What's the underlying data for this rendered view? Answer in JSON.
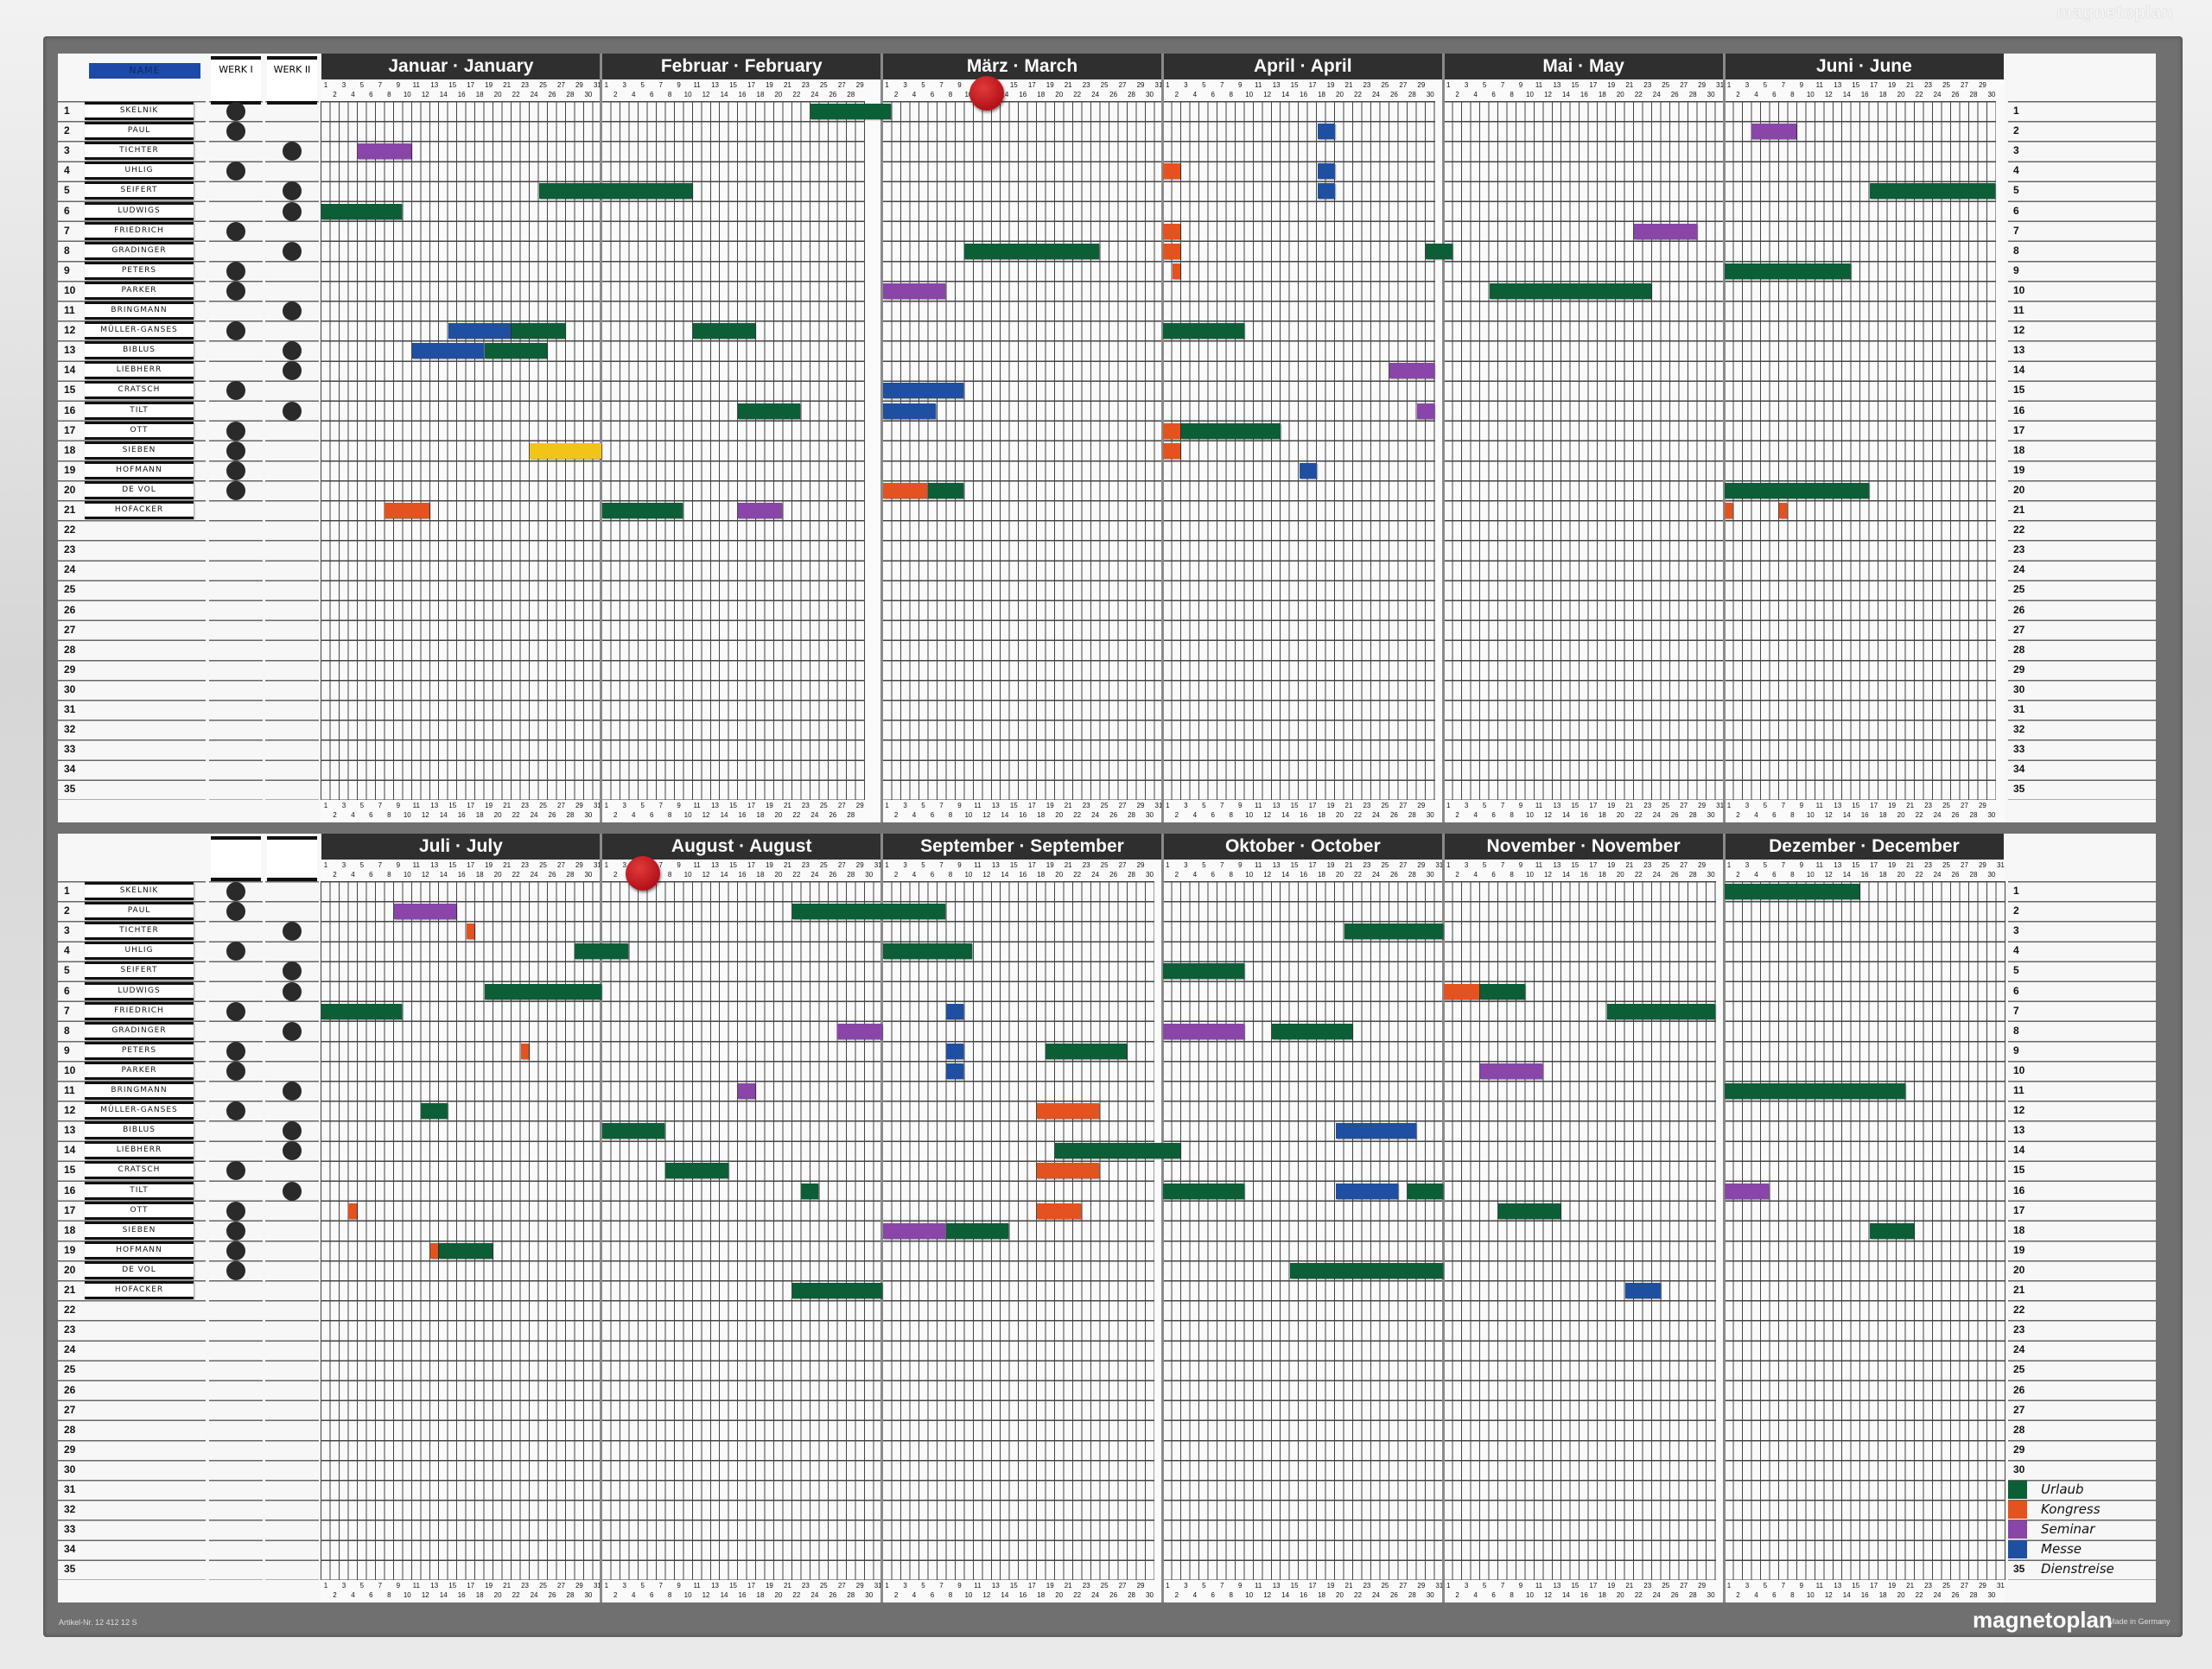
{
  "frame_brand": "magnetoplan",
  "brand": "magnetoplan",
  "made_in": "Made in Germany",
  "article_no": "Artikel-Nr. 12 412 12 S",
  "header": {
    "name_label": "NAME",
    "werk1": "WERK I",
    "werk2": "WERK II"
  },
  "row_count": 35,
  "names": [
    "Skelnik",
    "Paul",
    "Tichter",
    "Uhlig",
    "Seifert",
    "Ludwigs",
    "Friedrich",
    "Gradinger",
    "Peters",
    "Parker",
    "Bringmann",
    "Müller-Ganses",
    "Biblus",
    "Liebherr",
    "Cratsch",
    "Tilt",
    "Ott",
    "Sieben",
    "Hofmann",
    "De Vol",
    "Hofacker"
  ],
  "werk1_rows": [
    1,
    2,
    4,
    7,
    9,
    10,
    12,
    15,
    17,
    18,
    19,
    20
  ],
  "werk2_rows": [
    3,
    5,
    6,
    8,
    11,
    13,
    14,
    16
  ],
  "colors": {
    "urlaub": "#0c5e37",
    "kongress": "#e4521f",
    "seminar": "#8a45a8",
    "messe": "#1f4fa0",
    "yellow": "#f2c417",
    "marker": "#c8161d"
  },
  "legend": [
    {
      "key": "urlaub",
      "label": "Urlaub"
    },
    {
      "key": "kongress",
      "label": "Kongress"
    },
    {
      "key": "seminar",
      "label": "Seminar"
    },
    {
      "key": "messe",
      "label": "Messe"
    }
  ],
  "legend_extra": "Dienstreise",
  "halves": [
    {
      "months": [
        {
          "label": "Januar · January",
          "days": 31
        },
        {
          "label": "Februar · February",
          "days": 29
        },
        {
          "label": "März · March",
          "days": 31
        },
        {
          "label": "April · April",
          "days": 30
        },
        {
          "label": "Mai · May",
          "days": 31
        },
        {
          "label": "Juni · June",
          "days": 30
        }
      ],
      "marker": {
        "month": 3,
        "day": 12
      },
      "bars": [
        {
          "row": 1,
          "type": "urlaub",
          "from": [
            2,
            24
          ],
          "to": [
            3,
            1
          ]
        },
        {
          "row": 2,
          "type": "messe",
          "from": [
            4,
            18
          ],
          "to": [
            4,
            19
          ]
        },
        {
          "row": 2,
          "type": "seminar",
          "from": [
            6,
            4
          ],
          "to": [
            6,
            8
          ]
        },
        {
          "row": 3,
          "type": "seminar",
          "from": [
            1,
            5
          ],
          "to": [
            1,
            10
          ]
        },
        {
          "row": 4,
          "type": "kongress",
          "from": [
            4,
            1
          ],
          "to": [
            4,
            2
          ]
        },
        {
          "row": 4,
          "type": "messe",
          "from": [
            4,
            18
          ],
          "to": [
            4,
            19
          ]
        },
        {
          "row": 5,
          "type": "urlaub",
          "from": [
            1,
            25
          ],
          "to": [
            2,
            10
          ]
        },
        {
          "row": 5,
          "type": "messe",
          "from": [
            4,
            18
          ],
          "to": [
            4,
            19
          ]
        },
        {
          "row": 5,
          "type": "urlaub",
          "from": [
            6,
            17
          ],
          "to": [
            6,
            30
          ]
        },
        {
          "row": 6,
          "type": "urlaub",
          "from": [
            1,
            1
          ],
          "to": [
            1,
            9
          ]
        },
        {
          "row": 7,
          "type": "kongress",
          "from": [
            4,
            1
          ],
          "to": [
            4,
            2
          ]
        },
        {
          "row": 7,
          "type": "seminar",
          "from": [
            5,
            22
          ],
          "to": [
            5,
            28
          ]
        },
        {
          "row": 8,
          "type": "urlaub",
          "from": [
            3,
            10
          ],
          "to": [
            3,
            24
          ]
        },
        {
          "row": 8,
          "type": "kongress",
          "from": [
            4,
            1
          ],
          "to": [
            4,
            2
          ]
        },
        {
          "row": 8,
          "type": "urlaub",
          "from": [
            4,
            30
          ],
          "to": [
            5,
            1
          ]
        },
        {
          "row": 9,
          "type": "kongress",
          "from": [
            4,
            2
          ],
          "to": [
            4,
            2
          ]
        },
        {
          "row": 9,
          "type": "urlaub",
          "from": [
            6,
            1
          ],
          "to": [
            6,
            14
          ]
        },
        {
          "row": 10,
          "type": "seminar",
          "from": [
            3,
            1
          ],
          "to": [
            3,
            7
          ]
        },
        {
          "row": 10,
          "type": "urlaub",
          "from": [
            5,
            6
          ],
          "to": [
            5,
            23
          ]
        },
        {
          "row": 12,
          "type": "messe",
          "from": [
            1,
            15
          ],
          "to": [
            1,
            21
          ]
        },
        {
          "row": 12,
          "type": "urlaub",
          "from": [
            1,
            22
          ],
          "to": [
            1,
            27
          ]
        },
        {
          "row": 12,
          "type": "urlaub",
          "from": [
            2,
            11
          ],
          "to": [
            2,
            17
          ]
        },
        {
          "row": 12,
          "type": "urlaub",
          "from": [
            4,
            1
          ],
          "to": [
            4,
            9
          ]
        },
        {
          "row": 13,
          "type": "messe",
          "from": [
            1,
            11
          ],
          "to": [
            1,
            18
          ]
        },
        {
          "row": 13,
          "type": "urlaub",
          "from": [
            1,
            19
          ],
          "to": [
            1,
            25
          ]
        },
        {
          "row": 14,
          "type": "seminar",
          "from": [
            4,
            26
          ],
          "to": [
            4,
            30
          ]
        },
        {
          "row": 15,
          "type": "messe",
          "from": [
            3,
            1
          ],
          "to": [
            3,
            9
          ]
        },
        {
          "row": 16,
          "type": "urlaub",
          "from": [
            2,
            16
          ],
          "to": [
            2,
            22
          ]
        },
        {
          "row": 16,
          "type": "messe",
          "from": [
            3,
            1
          ],
          "to": [
            3,
            6
          ]
        },
        {
          "row": 16,
          "type": "seminar",
          "from": [
            4,
            29
          ],
          "to": [
            4,
            30
          ]
        },
        {
          "row": 17,
          "type": "kongress",
          "from": [
            4,
            1
          ],
          "to": [
            4,
            2
          ]
        },
        {
          "row": 17,
          "type": "urlaub",
          "from": [
            4,
            3
          ],
          "to": [
            4,
            13
          ]
        },
        {
          "row": 18,
          "type": "yellow",
          "from": [
            1,
            24
          ],
          "to": [
            1,
            31
          ]
        },
        {
          "row": 18,
          "type": "kongress",
          "from": [
            4,
            1
          ],
          "to": [
            4,
            2
          ]
        },
        {
          "row": 19,
          "type": "messe",
          "from": [
            4,
            16
          ],
          "to": [
            4,
            17
          ]
        },
        {
          "row": 20,
          "type": "kongress",
          "from": [
            3,
            1
          ],
          "to": [
            3,
            5
          ]
        },
        {
          "row": 20,
          "type": "urlaub",
          "from": [
            3,
            6
          ],
          "to": [
            3,
            9
          ]
        },
        {
          "row": 20,
          "type": "urlaub",
          "from": [
            6,
            1
          ],
          "to": [
            6,
            16
          ]
        },
        {
          "row": 21,
          "type": "kongress",
          "from": [
            1,
            8
          ],
          "to": [
            1,
            12
          ]
        },
        {
          "row": 21,
          "type": "urlaub",
          "from": [
            2,
            1
          ],
          "to": [
            2,
            9
          ]
        },
        {
          "row": 21,
          "type": "seminar",
          "from": [
            2,
            16
          ],
          "to": [
            2,
            20
          ]
        },
        {
          "row": 21,
          "type": "kongress",
          "from": [
            6,
            1
          ],
          "to": [
            6,
            1
          ]
        },
        {
          "row": 21,
          "type": "kongress",
          "from": [
            6,
            7
          ],
          "to": [
            6,
            7
          ]
        }
      ]
    },
    {
      "months": [
        {
          "label": "Juli · July",
          "days": 31
        },
        {
          "label": "August · August",
          "days": 31
        },
        {
          "label": "September · September",
          "days": 30
        },
        {
          "label": "Oktober · October",
          "days": 31
        },
        {
          "label": "November · November",
          "days": 30
        },
        {
          "label": "Dezember · December",
          "days": 31
        }
      ],
      "marker": {
        "month": 2,
        "day": 5
      },
      "bars": [
        {
          "row": 1,
          "type": "urlaub",
          "from": [
            6,
            1
          ],
          "to": [
            6,
            15
          ]
        },
        {
          "row": 2,
          "type": "seminar",
          "from": [
            1,
            9
          ],
          "to": [
            1,
            15
          ]
        },
        {
          "row": 2,
          "type": "urlaub",
          "from": [
            2,
            22
          ],
          "to": [
            3,
            7
          ]
        },
        {
          "row": 3,
          "type": "kongress",
          "from": [
            1,
            17
          ],
          "to": [
            1,
            17
          ]
        },
        {
          "row": 3,
          "type": "urlaub",
          "from": [
            4,
            21
          ],
          "to": [
            4,
            31
          ]
        },
        {
          "row": 4,
          "type": "urlaub",
          "from": [
            1,
            29
          ],
          "to": [
            2,
            3
          ]
        },
        {
          "row": 4,
          "type": "urlaub",
          "from": [
            3,
            1
          ],
          "to": [
            3,
            10
          ]
        },
        {
          "row": 5,
          "type": "urlaub",
          "from": [
            4,
            1
          ],
          "to": [
            4,
            9
          ]
        },
        {
          "row": 6,
          "type": "urlaub",
          "from": [
            1,
            19
          ],
          "to": [
            1,
            31
          ]
        },
        {
          "row": 6,
          "type": "kongress",
          "from": [
            5,
            1
          ],
          "to": [
            5,
            4
          ]
        },
        {
          "row": 6,
          "type": "urlaub",
          "from": [
            5,
            5
          ],
          "to": [
            5,
            9
          ]
        },
        {
          "row": 7,
          "type": "urlaub",
          "from": [
            1,
            1
          ],
          "to": [
            1,
            9
          ]
        },
        {
          "row": 7,
          "type": "messe",
          "from": [
            3,
            8
          ],
          "to": [
            3,
            9
          ]
        },
        {
          "row": 7,
          "type": "urlaub",
          "from": [
            5,
            19
          ],
          "to": [
            5,
            30
          ]
        },
        {
          "row": 8,
          "type": "seminar",
          "from": [
            2,
            27
          ],
          "to": [
            2,
            31
          ]
        },
        {
          "row": 8,
          "type": "seminar",
          "from": [
            4,
            1
          ],
          "to": [
            4,
            9
          ]
        },
        {
          "row": 8,
          "type": "urlaub",
          "from": [
            4,
            13
          ],
          "to": [
            4,
            21
          ]
        },
        {
          "row": 9,
          "type": "kongress",
          "from": [
            1,
            23
          ],
          "to": [
            1,
            23
          ]
        },
        {
          "row": 9,
          "type": "messe",
          "from": [
            3,
            8
          ],
          "to": [
            3,
            9
          ]
        },
        {
          "row": 9,
          "type": "urlaub",
          "from": [
            3,
            19
          ],
          "to": [
            3,
            27
          ]
        },
        {
          "row": 10,
          "type": "messe",
          "from": [
            3,
            8
          ],
          "to": [
            3,
            9
          ]
        },
        {
          "row": 10,
          "type": "seminar",
          "from": [
            5,
            5
          ],
          "to": [
            5,
            11
          ]
        },
        {
          "row": 11,
          "type": "seminar",
          "from": [
            2,
            16
          ],
          "to": [
            2,
            17
          ]
        },
        {
          "row": 11,
          "type": "urlaub",
          "from": [
            6,
            1
          ],
          "to": [
            6,
            20
          ]
        },
        {
          "row": 12,
          "type": "urlaub",
          "from": [
            1,
            12
          ],
          "to": [
            1,
            14
          ]
        },
        {
          "row": 12,
          "type": "kongress",
          "from": [
            3,
            18
          ],
          "to": [
            3,
            24
          ]
        },
        {
          "row": 13,
          "type": "urlaub",
          "from": [
            2,
            1
          ],
          "to": [
            2,
            7
          ]
        },
        {
          "row": 13,
          "type": "messe",
          "from": [
            4,
            20
          ],
          "to": [
            4,
            28
          ]
        },
        {
          "row": 14,
          "type": "urlaub",
          "from": [
            3,
            20
          ],
          "to": [
            4,
            2
          ]
        },
        {
          "row": 15,
          "type": "urlaub",
          "from": [
            2,
            8
          ],
          "to": [
            2,
            14
          ]
        },
        {
          "row": 15,
          "type": "kongress",
          "from": [
            3,
            18
          ],
          "to": [
            3,
            24
          ]
        },
        {
          "row": 16,
          "type": "urlaub",
          "from": [
            2,
            23
          ],
          "to": [
            2,
            24
          ]
        },
        {
          "row": 16,
          "type": "urlaub",
          "from": [
            4,
            1
          ],
          "to": [
            4,
            9
          ]
        },
        {
          "row": 16,
          "type": "messe",
          "from": [
            4,
            20
          ],
          "to": [
            4,
            26
          ]
        },
        {
          "row": 16,
          "type": "urlaub",
          "from": [
            4,
            28
          ],
          "to": [
            4,
            31
          ]
        },
        {
          "row": 16,
          "type": "seminar",
          "from": [
            6,
            1
          ],
          "to": [
            6,
            5
          ]
        },
        {
          "row": 17,
          "type": "kongress",
          "from": [
            1,
            4
          ],
          "to": [
            1,
            4
          ]
        },
        {
          "row": 17,
          "type": "kongress",
          "from": [
            3,
            18
          ],
          "to": [
            3,
            22
          ]
        },
        {
          "row": 17,
          "type": "urlaub",
          "from": [
            5,
            7
          ],
          "to": [
            5,
            13
          ]
        },
        {
          "row": 18,
          "type": "seminar",
          "from": [
            3,
            1
          ],
          "to": [
            3,
            7
          ]
        },
        {
          "row": 18,
          "type": "urlaub",
          "from": [
            3,
            8
          ],
          "to": [
            3,
            14
          ]
        },
        {
          "row": 18,
          "type": "urlaub",
          "from": [
            6,
            17
          ],
          "to": [
            6,
            21
          ]
        },
        {
          "row": 19,
          "type": "kongress",
          "from": [
            1,
            13
          ],
          "to": [
            1,
            13
          ]
        },
        {
          "row": 19,
          "type": "urlaub",
          "from": [
            1,
            14
          ],
          "to": [
            1,
            19
          ]
        },
        {
          "row": 20,
          "type": "urlaub",
          "from": [
            4,
            15
          ],
          "to": [
            4,
            31
          ]
        },
        {
          "row": 21,
          "type": "urlaub",
          "from": [
            2,
            22
          ],
          "to": [
            2,
            31
          ]
        },
        {
          "row": 21,
          "type": "messe",
          "from": [
            5,
            21
          ],
          "to": [
            5,
            24
          ]
        }
      ]
    }
  ]
}
